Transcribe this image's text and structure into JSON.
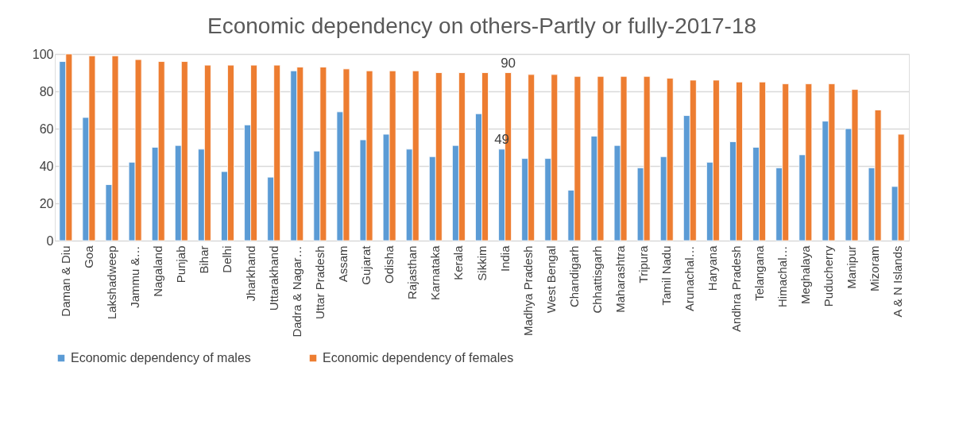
{
  "chart_data": {
    "type": "bar",
    "title": "Economic dependency on others-Partly or fully-2017-18",
    "categories": [
      "Daman & Diu",
      "Goa",
      "Lakshadweep",
      "Jammu &…",
      "Nagaland",
      "Punjab",
      "Bihar",
      "Delhi",
      "Jharkhand",
      "Uttarakhand",
      "Dadra & Nagar…",
      "Uttar Pradesh",
      "Assam",
      "Gujarat",
      "Odisha",
      "Rajasthan",
      "Karnataka",
      "Kerala",
      "Sikkim",
      "India",
      "Madhya Pradesh",
      "West Bengal",
      "Chandigarh",
      "Chhattisgarh",
      "Maharashtra",
      "Tripura",
      "Tamil Nadu",
      "Arunachal…",
      "Haryana",
      "Andhra Pradesh",
      "Telangana",
      "Himachal…",
      "Meghalaya",
      "Puducherry",
      "Manipur",
      "Mizoram",
      "A & N Islands"
    ],
    "series": [
      {
        "name": "Economic dependency of males",
        "color": "#5b9bd5",
        "values": [
          96,
          66,
          30,
          42,
          50,
          51,
          49,
          37,
          62,
          34,
          91,
          48,
          69,
          54,
          57,
          49,
          45,
          51,
          68,
          49,
          44,
          44,
          27,
          56,
          51,
          39,
          45,
          67,
          42,
          53,
          50,
          39,
          46,
          64,
          60,
          39,
          29
        ],
        "value_labels": [
          null,
          null,
          null,
          null,
          null,
          null,
          null,
          null,
          null,
          null,
          null,
          null,
          null,
          null,
          null,
          null,
          null,
          null,
          null,
          "49",
          null,
          null,
          null,
          null,
          null,
          null,
          null,
          null,
          null,
          null,
          null,
          null,
          null,
          null,
          null,
          null,
          null
        ]
      },
      {
        "name": "Economic dependency of females",
        "color": "#ed7d31",
        "values": [
          100,
          99,
          99,
          97,
          96,
          96,
          94,
          94,
          94,
          94,
          93,
          93,
          92,
          91,
          91,
          91,
          90,
          90,
          90,
          90,
          89,
          89,
          88,
          88,
          88,
          88,
          87,
          86,
          86,
          85,
          85,
          84,
          84,
          84,
          81,
          70,
          57
        ],
        "value_labels": [
          null,
          null,
          null,
          null,
          null,
          null,
          null,
          null,
          null,
          null,
          null,
          null,
          null,
          null,
          null,
          null,
          null,
          null,
          null,
          "90",
          null,
          null,
          null,
          null,
          null,
          null,
          null,
          null,
          null,
          null,
          null,
          null,
          null,
          null,
          null,
          null,
          null
        ]
      }
    ],
    "ylim": [
      0,
      100
    ],
    "yticks": [
      0,
      20,
      40,
      60,
      80,
      100
    ],
    "grid": "y",
    "legend": "bottom"
  }
}
